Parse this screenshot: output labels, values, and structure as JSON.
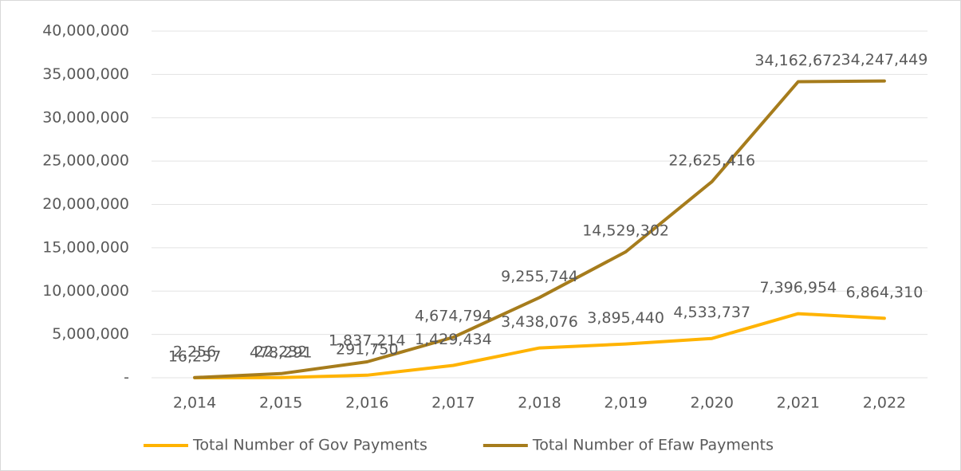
{
  "chart_data": {
    "type": "line",
    "categories": [
      "2,014",
      "2,015",
      "2,016",
      "2,017",
      "2,018",
      "2,019",
      "2,020",
      "2,021",
      "2,022"
    ],
    "series": [
      {
        "name": "Total Number of Gov Payments",
        "color": "#ffb300",
        "values": [
          2256,
          22232,
          291750,
          1429434,
          3438076,
          3895440,
          4533737,
          7396954,
          6864310
        ],
        "value_labels": [
          "2,256",
          "22,232",
          "291,750",
          "1,429,434",
          "3,438,076",
          "3,895,440",
          "4,533,737",
          "7,396,954",
          "6,864,310"
        ]
      },
      {
        "name": "Total Number of Efaw Payments",
        "color": "#a67c1c",
        "values": [
          16257,
          478291,
          1837214,
          4674794,
          9255744,
          14529302,
          22625416,
          34162672,
          34247449
        ],
        "value_labels": [
          "16,257",
          "478,291",
          "1,837,214",
          "4,674,794",
          "9,255,744",
          "14,529,302",
          "22,625,416",
          "34,162,672",
          "34,247,449"
        ]
      }
    ],
    "ylim": [
      0,
      40000000
    ],
    "yticks": [
      {
        "value": 0,
        "label": "-"
      },
      {
        "value": 5000000,
        "label": "5,000,000"
      },
      {
        "value": 10000000,
        "label": "10,000,000"
      },
      {
        "value": 15000000,
        "label": "15,000,000"
      },
      {
        "value": 20000000,
        "label": "20,000,000"
      },
      {
        "value": 25000000,
        "label": "25,000,000"
      },
      {
        "value": 30000000,
        "label": "30,000,000"
      },
      {
        "value": 35000000,
        "label": "35,000,000"
      },
      {
        "value": 40000000,
        "label": "40,000,000"
      }
    ],
    "grid": true,
    "legend": "bottom"
  }
}
